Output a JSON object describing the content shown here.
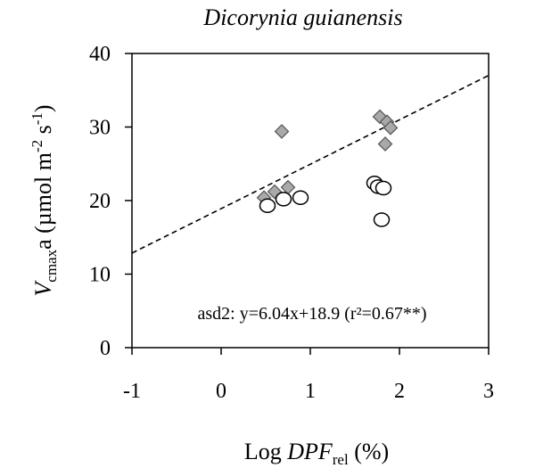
{
  "chart_data": {
    "type": "scatter",
    "title": "Dicorynia guianensis",
    "xlabel": {
      "prefix": "Log ",
      "italic": "DPF",
      "subscript": "rel",
      "suffix": " (%)"
    },
    "ylabel": {
      "italic": "V",
      "subscript": "cmax",
      "after_sub": "a (µmol m",
      "sup1": "-2",
      "middle": " s",
      "sup2": "-1",
      "suffix": ")"
    },
    "xlim": [
      -1,
      3
    ],
    "ylim": [
      0,
      40
    ],
    "xticks": [
      "-1",
      "0",
      "1",
      "2",
      "3"
    ],
    "yticks": [
      "0",
      "10",
      "20",
      "30",
      "40"
    ],
    "grid": false,
    "series": [
      {
        "marker": "diamond",
        "color": "#a9a9a9",
        "points": [
          [
            0.48,
            20.4
          ],
          [
            0.6,
            21.2
          ],
          [
            0.75,
            21.8
          ],
          [
            0.68,
            29.4
          ],
          [
            1.78,
            31.4
          ],
          [
            1.86,
            30.7
          ],
          [
            1.9,
            29.9
          ],
          [
            1.84,
            27.7
          ]
        ]
      },
      {
        "marker": "circle",
        "color": "#ffffff",
        "points": [
          [
            0.52,
            19.3
          ],
          [
            0.7,
            20.2
          ],
          [
            0.89,
            20.4
          ],
          [
            1.72,
            22.4
          ],
          [
            1.76,
            21.9
          ],
          [
            1.82,
            21.7
          ],
          [
            1.8,
            17.4
          ]
        ]
      }
    ],
    "fit": {
      "slope": 6.04,
      "intercept": 18.9,
      "style": "dashed"
    },
    "annotation": "asd2: y=6.04x+18.9 (r²=0.67**)"
  }
}
